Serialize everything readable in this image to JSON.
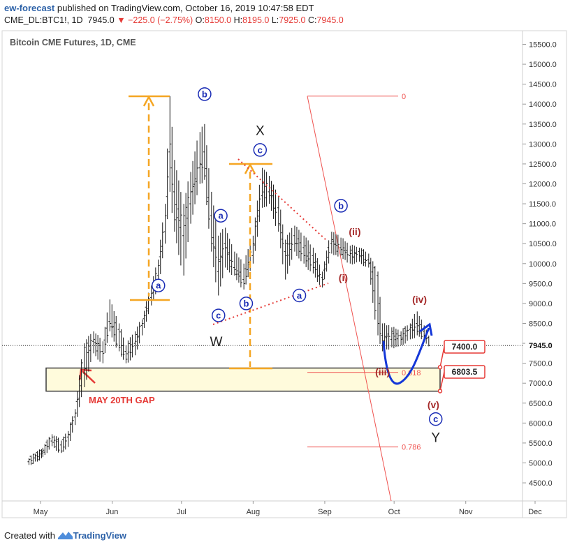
{
  "header": {
    "publisher": "ew-forecast",
    "published_text": " published on TradingView.com, October 16, 2019 10:47:58 EDT",
    "symbol": "CME_DL:BTC1!, 1D",
    "last": "7945.0",
    "change": "−225.0 (−2.75%)",
    "ohlc": [
      {
        "k": "O:",
        "v": "8150.0"
      },
      {
        "k": "H:",
        "v": "8195.0"
      },
      {
        "k": "L:",
        "v": "7925.0"
      },
      {
        "k": "C:",
        "v": "7945.0"
      }
    ]
  },
  "footer": {
    "created_with": "Created with",
    "brand": "TradingView"
  },
  "colors": {
    "bars": "#1a1a1a",
    "orange": "#f5a623",
    "wave_blue": "#1a2cb5",
    "wave_red": "#a52a2a",
    "fib_red": "#ef5350",
    "projection": "#1437d8",
    "gap_fill": "#fffbdc",
    "gap_label": "#e53935"
  },
  "chart_data": {
    "type": "ohlc",
    "title": "Bitcoin CME Futures, 1D, CME",
    "y_ticks": [
      4500,
      5000,
      5500,
      6000,
      6500,
      7000,
      7500,
      8000,
      8500,
      9000,
      9500,
      10000,
      10500,
      11000,
      11500,
      12000,
      12500,
      13000,
      13500,
      14000,
      14500,
      15000,
      15500
    ],
    "x_ticks": [
      "May",
      "Jun",
      "Jul",
      "Aug",
      "Sep",
      "Oct",
      "Nov",
      "Dec"
    ],
    "last_price": 7945.0,
    "key_levels": [
      {
        "label": "7400.0",
        "value": 7400
      },
      {
        "label": "6803.5",
        "value": 6803.5
      }
    ],
    "fib_levels": [
      {
        "label": "0",
        "value": 14200
      },
      {
        "label": "0.618",
        "value": 7270
      },
      {
        "label": "0.786",
        "value": 5400
      }
    ],
    "gap": {
      "label": "MAY 20TH GAP",
      "from": 6800,
      "to": 7380
    },
    "wave_labels": [
      {
        "text": "a",
        "style": "circle",
        "x": "2019-06-21",
        "y": 9450
      },
      {
        "text": "b",
        "style": "circle",
        "x": "2019-07-11",
        "y": 14250
      },
      {
        "text": "a",
        "style": "circle",
        "x": "2019-07-18",
        "y": 11200
      },
      {
        "text": "c",
        "style": "circle",
        "x": "2019-07-17",
        "y": 8700
      },
      {
        "text": "W",
        "style": "plain",
        "x": "2019-07-16",
        "y": 8050
      },
      {
        "text": "b",
        "style": "circle",
        "x": "2019-07-29",
        "y": 9000
      },
      {
        "text": "X",
        "style": "plain",
        "x": "2019-08-04",
        "y": 13350
      },
      {
        "text": "c",
        "style": "circle",
        "x": "2019-08-04",
        "y": 12850
      },
      {
        "text": "a",
        "style": "circle",
        "x": "2019-08-21",
        "y": 9200
      },
      {
        "text": "b",
        "style": "circle",
        "x": "2019-09-08",
        "y": 11450
      },
      {
        "text": "(ii)",
        "style": "red",
        "x": "2019-09-14",
        "y": 10800
      },
      {
        "text": "(i)",
        "style": "red",
        "x": "2019-09-09",
        "y": 9650
      },
      {
        "text": "(iii)",
        "style": "red",
        "x": "2019-09-26",
        "y": 7280
      },
      {
        "text": "(iv)",
        "style": "red",
        "x": "2019-10-12",
        "y": 9100
      },
      {
        "text": "(v)",
        "style": "red",
        "x": "2019-10-18",
        "y": 6460
      },
      {
        "text": "c",
        "style": "circle",
        "x": "2019-10-19",
        "y": 6100
      },
      {
        "text": "Y",
        "style": "plain",
        "x": "2019-10-19",
        "y": 5650
      }
    ],
    "ohlc_approx": [
      {
        "d": "2019-04-26",
        "o": 5030,
        "h": 5120,
        "l": 4950,
        "c": 5090
      },
      {
        "d": "2019-05-02",
        "o": 5250,
        "h": 5380,
        "l": 5150,
        "c": 5320
      },
      {
        "d": "2019-05-06",
        "o": 5550,
        "h": 5720,
        "l": 5420,
        "c": 5650
      },
      {
        "d": "2019-05-10",
        "o": 5450,
        "h": 5560,
        "l": 5250,
        "c": 5300
      },
      {
        "d": "2019-05-13",
        "o": 5650,
        "h": 5800,
        "l": 5400,
        "c": 5720
      },
      {
        "d": "2019-05-16",
        "o": 6150,
        "h": 6350,
        "l": 5950,
        "c": 6250
      },
      {
        "d": "2019-05-20",
        "o": 7250,
        "h": 8000,
        "l": 6900,
        "c": 7900
      },
      {
        "d": "2019-05-24",
        "o": 8050,
        "h": 8300,
        "l": 7750,
        "c": 8100
      },
      {
        "d": "2019-05-28",
        "o": 7800,
        "h": 8050,
        "l": 7500,
        "c": 7750
      },
      {
        "d": "2019-05-31",
        "o": 8550,
        "h": 9100,
        "l": 8300,
        "c": 8500
      },
      {
        "d": "2019-06-04",
        "o": 8350,
        "h": 8500,
        "l": 7800,
        "c": 7900
      },
      {
        "d": "2019-06-07",
        "o": 7800,
        "h": 7950,
        "l": 7500,
        "c": 7600
      },
      {
        "d": "2019-06-11",
        "o": 8000,
        "h": 8300,
        "l": 7700,
        "c": 8050
      },
      {
        "d": "2019-06-14",
        "o": 8450,
        "h": 8600,
        "l": 8200,
        "c": 8500
      },
      {
        "d": "2019-06-18",
        "o": 9150,
        "h": 9450,
        "l": 8950,
        "c": 9250
      },
      {
        "d": "2019-06-21",
        "o": 9700,
        "h": 10100,
        "l": 9400,
        "c": 9950
      },
      {
        "d": "2019-06-24",
        "o": 10800,
        "h": 11500,
        "l": 10500,
        "c": 11200
      },
      {
        "d": "2019-06-26",
        "o": 12800,
        "h": 14200,
        "l": 11800,
        "c": 13000
      },
      {
        "d": "2019-06-28",
        "o": 11800,
        "h": 12600,
        "l": 10800,
        "c": 11100
      },
      {
        "d": "2019-07-02",
        "o": 10700,
        "h": 11500,
        "l": 9700,
        "c": 11200
      },
      {
        "d": "2019-07-05",
        "o": 11500,
        "h": 12300,
        "l": 11000,
        "c": 11800
      },
      {
        "d": "2019-07-09",
        "o": 12400,
        "h": 13300,
        "l": 12000,
        "c": 12500
      },
      {
        "d": "2019-07-11",
        "o": 12800,
        "h": 13500,
        "l": 12100,
        "c": 12200
      },
      {
        "d": "2019-07-14",
        "o": 11200,
        "h": 11800,
        "l": 10300,
        "c": 10500
      },
      {
        "d": "2019-07-17",
        "o": 9800,
        "h": 10700,
        "l": 9200,
        "c": 10100
      },
      {
        "d": "2019-07-20",
        "o": 10500,
        "h": 10900,
        "l": 9900,
        "c": 10400
      },
      {
        "d": "2019-07-24",
        "o": 9900,
        "h": 10300,
        "l": 9700,
        "c": 9850
      },
      {
        "d": "2019-07-28",
        "o": 9600,
        "h": 10000,
        "l": 9350,
        "c": 9500
      },
      {
        "d": "2019-08-01",
        "o": 10200,
        "h": 10700,
        "l": 10000,
        "c": 10500
      },
      {
        "d": "2019-08-05",
        "o": 11700,
        "h": 12400,
        "l": 11400,
        "c": 12000
      },
      {
        "d": "2019-08-08",
        "o": 11800,
        "h": 12200,
        "l": 11500,
        "c": 11900
      },
      {
        "d": "2019-08-12",
        "o": 11400,
        "h": 11700,
        "l": 10800,
        "c": 11000
      },
      {
        "d": "2019-08-15",
        "o": 10300,
        "h": 10600,
        "l": 9600,
        "c": 10200
      },
      {
        "d": "2019-08-19",
        "o": 10700,
        "h": 10950,
        "l": 10300,
        "c": 10500
      },
      {
        "d": "2019-08-23",
        "o": 10400,
        "h": 10700,
        "l": 10000,
        "c": 10200
      },
      {
        "d": "2019-08-27",
        "o": 10200,
        "h": 10400,
        "l": 9750,
        "c": 9900
      },
      {
        "d": "2019-08-31",
        "o": 9650,
        "h": 9800,
        "l": 9400,
        "c": 9600
      },
      {
        "d": "2019-09-04",
        "o": 10500,
        "h": 10800,
        "l": 10250,
        "c": 10600
      },
      {
        "d": "2019-09-08",
        "o": 10400,
        "h": 10650,
        "l": 10200,
        "c": 10350
      },
      {
        "d": "2019-09-12",
        "o": 10200,
        "h": 10450,
        "l": 10000,
        "c": 10250
      },
      {
        "d": "2019-09-16",
        "o": 10300,
        "h": 10400,
        "l": 10050,
        "c": 10200
      },
      {
        "d": "2019-09-20",
        "o": 10100,
        "h": 10250,
        "l": 9900,
        "c": 10000
      },
      {
        "d": "2019-09-24",
        "o": 9700,
        "h": 9800,
        "l": 8200,
        "c": 8500
      },
      {
        "d": "2019-09-26",
        "o": 8200,
        "h": 8500,
        "l": 7800,
        "c": 8050
      },
      {
        "d": "2019-09-30",
        "o": 8100,
        "h": 8400,
        "l": 7900,
        "c": 8300
      },
      {
        "d": "2019-10-04",
        "o": 8200,
        "h": 8300,
        "l": 7950,
        "c": 8100
      },
      {
        "d": "2019-10-08",
        "o": 8350,
        "h": 8500,
        "l": 8100,
        "c": 8400
      },
      {
        "d": "2019-10-11",
        "o": 8500,
        "h": 8800,
        "l": 8200,
        "c": 8300
      },
      {
        "d": "2019-10-14",
        "o": 8300,
        "h": 8450,
        "l": 8100,
        "c": 8200
      },
      {
        "d": "2019-10-16",
        "o": 8150,
        "h": 8195,
        "l": 7925,
        "c": 7945
      }
    ]
  }
}
